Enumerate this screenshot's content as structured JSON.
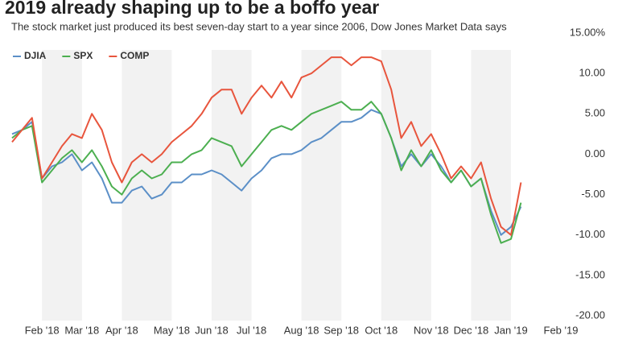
{
  "chart_data": {
    "type": "line",
    "title": "2019 already shaping up to be a boffo year",
    "subtitle": "The stock market just produced its best seven-day start to a year since 2006, Dow Jones Market Data says",
    "categories": [
      null,
      null,
      null,
      "Feb '18",
      null,
      null,
      null,
      "Mar '18",
      null,
      null,
      null,
      "Apr '18",
      null,
      null,
      null,
      null,
      "May '18",
      null,
      null,
      null,
      "Jun '18",
      null,
      null,
      null,
      "Jul '18",
      null,
      null,
      null,
      null,
      "Aug '18",
      null,
      null,
      null,
      "Sep '18",
      null,
      null,
      null,
      "Oct '18",
      null,
      null,
      null,
      null,
      "Nov '18",
      null,
      null,
      null,
      "Dec '18",
      null,
      null,
      null,
      "Jan '19",
      null,
      null,
      null,
      null,
      "Feb '19"
    ],
    "series": [
      {
        "name": "DJIA",
        "color": "#5b8fc7",
        "values": [
          2.5,
          3,
          4,
          -3,
          -1.5,
          -1,
          0,
          -2,
          -1,
          -3,
          -6,
          -6,
          -4.5,
          -4,
          -5.5,
          -5,
          -3.5,
          -3.5,
          -2.5,
          -2.5,
          -2,
          -2.5,
          -3.5,
          -4.5,
          -3,
          -2,
          -0.5,
          0,
          0,
          0.5,
          1.5,
          2,
          3,
          4,
          4,
          4.5,
          5.5,
          5,
          2,
          -1.5,
          0,
          -1.5,
          0,
          -1.5,
          -3.5,
          -2,
          -4,
          -3,
          -7,
          -10,
          -9,
          -6.5,
          null,
          null,
          null,
          null
        ]
      },
      {
        "name": "SPX",
        "color": "#4caf50",
        "values": [
          2,
          3,
          3.5,
          -3.5,
          -2,
          -0.5,
          0.5,
          -1,
          0.5,
          -1.5,
          -4,
          -5,
          -3,
          -2,
          -3,
          -2.5,
          -1,
          -1,
          0,
          0.5,
          2,
          1.5,
          1,
          -1.5,
          0,
          1.5,
          3,
          3.5,
          3,
          4,
          5,
          5.5,
          6,
          6.5,
          5.5,
          5.5,
          6.5,
          5,
          2,
          -2,
          0.5,
          -1.5,
          0.5,
          -2,
          -3.5,
          -2,
          -4,
          -3,
          -7.5,
          -11,
          -10.5,
          -6,
          null,
          null,
          null,
          null
        ]
      },
      {
        "name": "COMP",
        "color": "#e8553d",
        "values": [
          1.5,
          3,
          4.5,
          -3,
          -1,
          1,
          2.5,
          2,
          5,
          3,
          -1,
          -3.5,
          -1,
          0,
          -1,
          0,
          1.5,
          2.5,
          3.5,
          5,
          7,
          8,
          8,
          5,
          7,
          8.5,
          7,
          9,
          7,
          9.5,
          10,
          11,
          12,
          12,
          11,
          12,
          12,
          11.5,
          8,
          2,
          4,
          1,
          2.5,
          0,
          -3,
          -1.5,
          -3,
          -1,
          -5.5,
          -9,
          -10,
          -3.5,
          null,
          null,
          null,
          null
        ]
      }
    ],
    "ylim": [
      -20,
      15
    ],
    "yticks": [
      {
        "value": 15,
        "label": "15.00%"
      },
      {
        "value": 10,
        "label": "10.00"
      },
      {
        "value": 5,
        "label": "5.00"
      },
      {
        "value": 0,
        "label": "0.00"
      },
      {
        "value": -5,
        "label": "-5.00"
      },
      {
        "value": -10,
        "label": "-10.00"
      },
      {
        "value": -15,
        "label": "-15.00"
      },
      {
        "value": -20,
        "label": "-20.00"
      }
    ],
    "y_axis_side": "right",
    "grid": false,
    "legend": "top-left"
  }
}
